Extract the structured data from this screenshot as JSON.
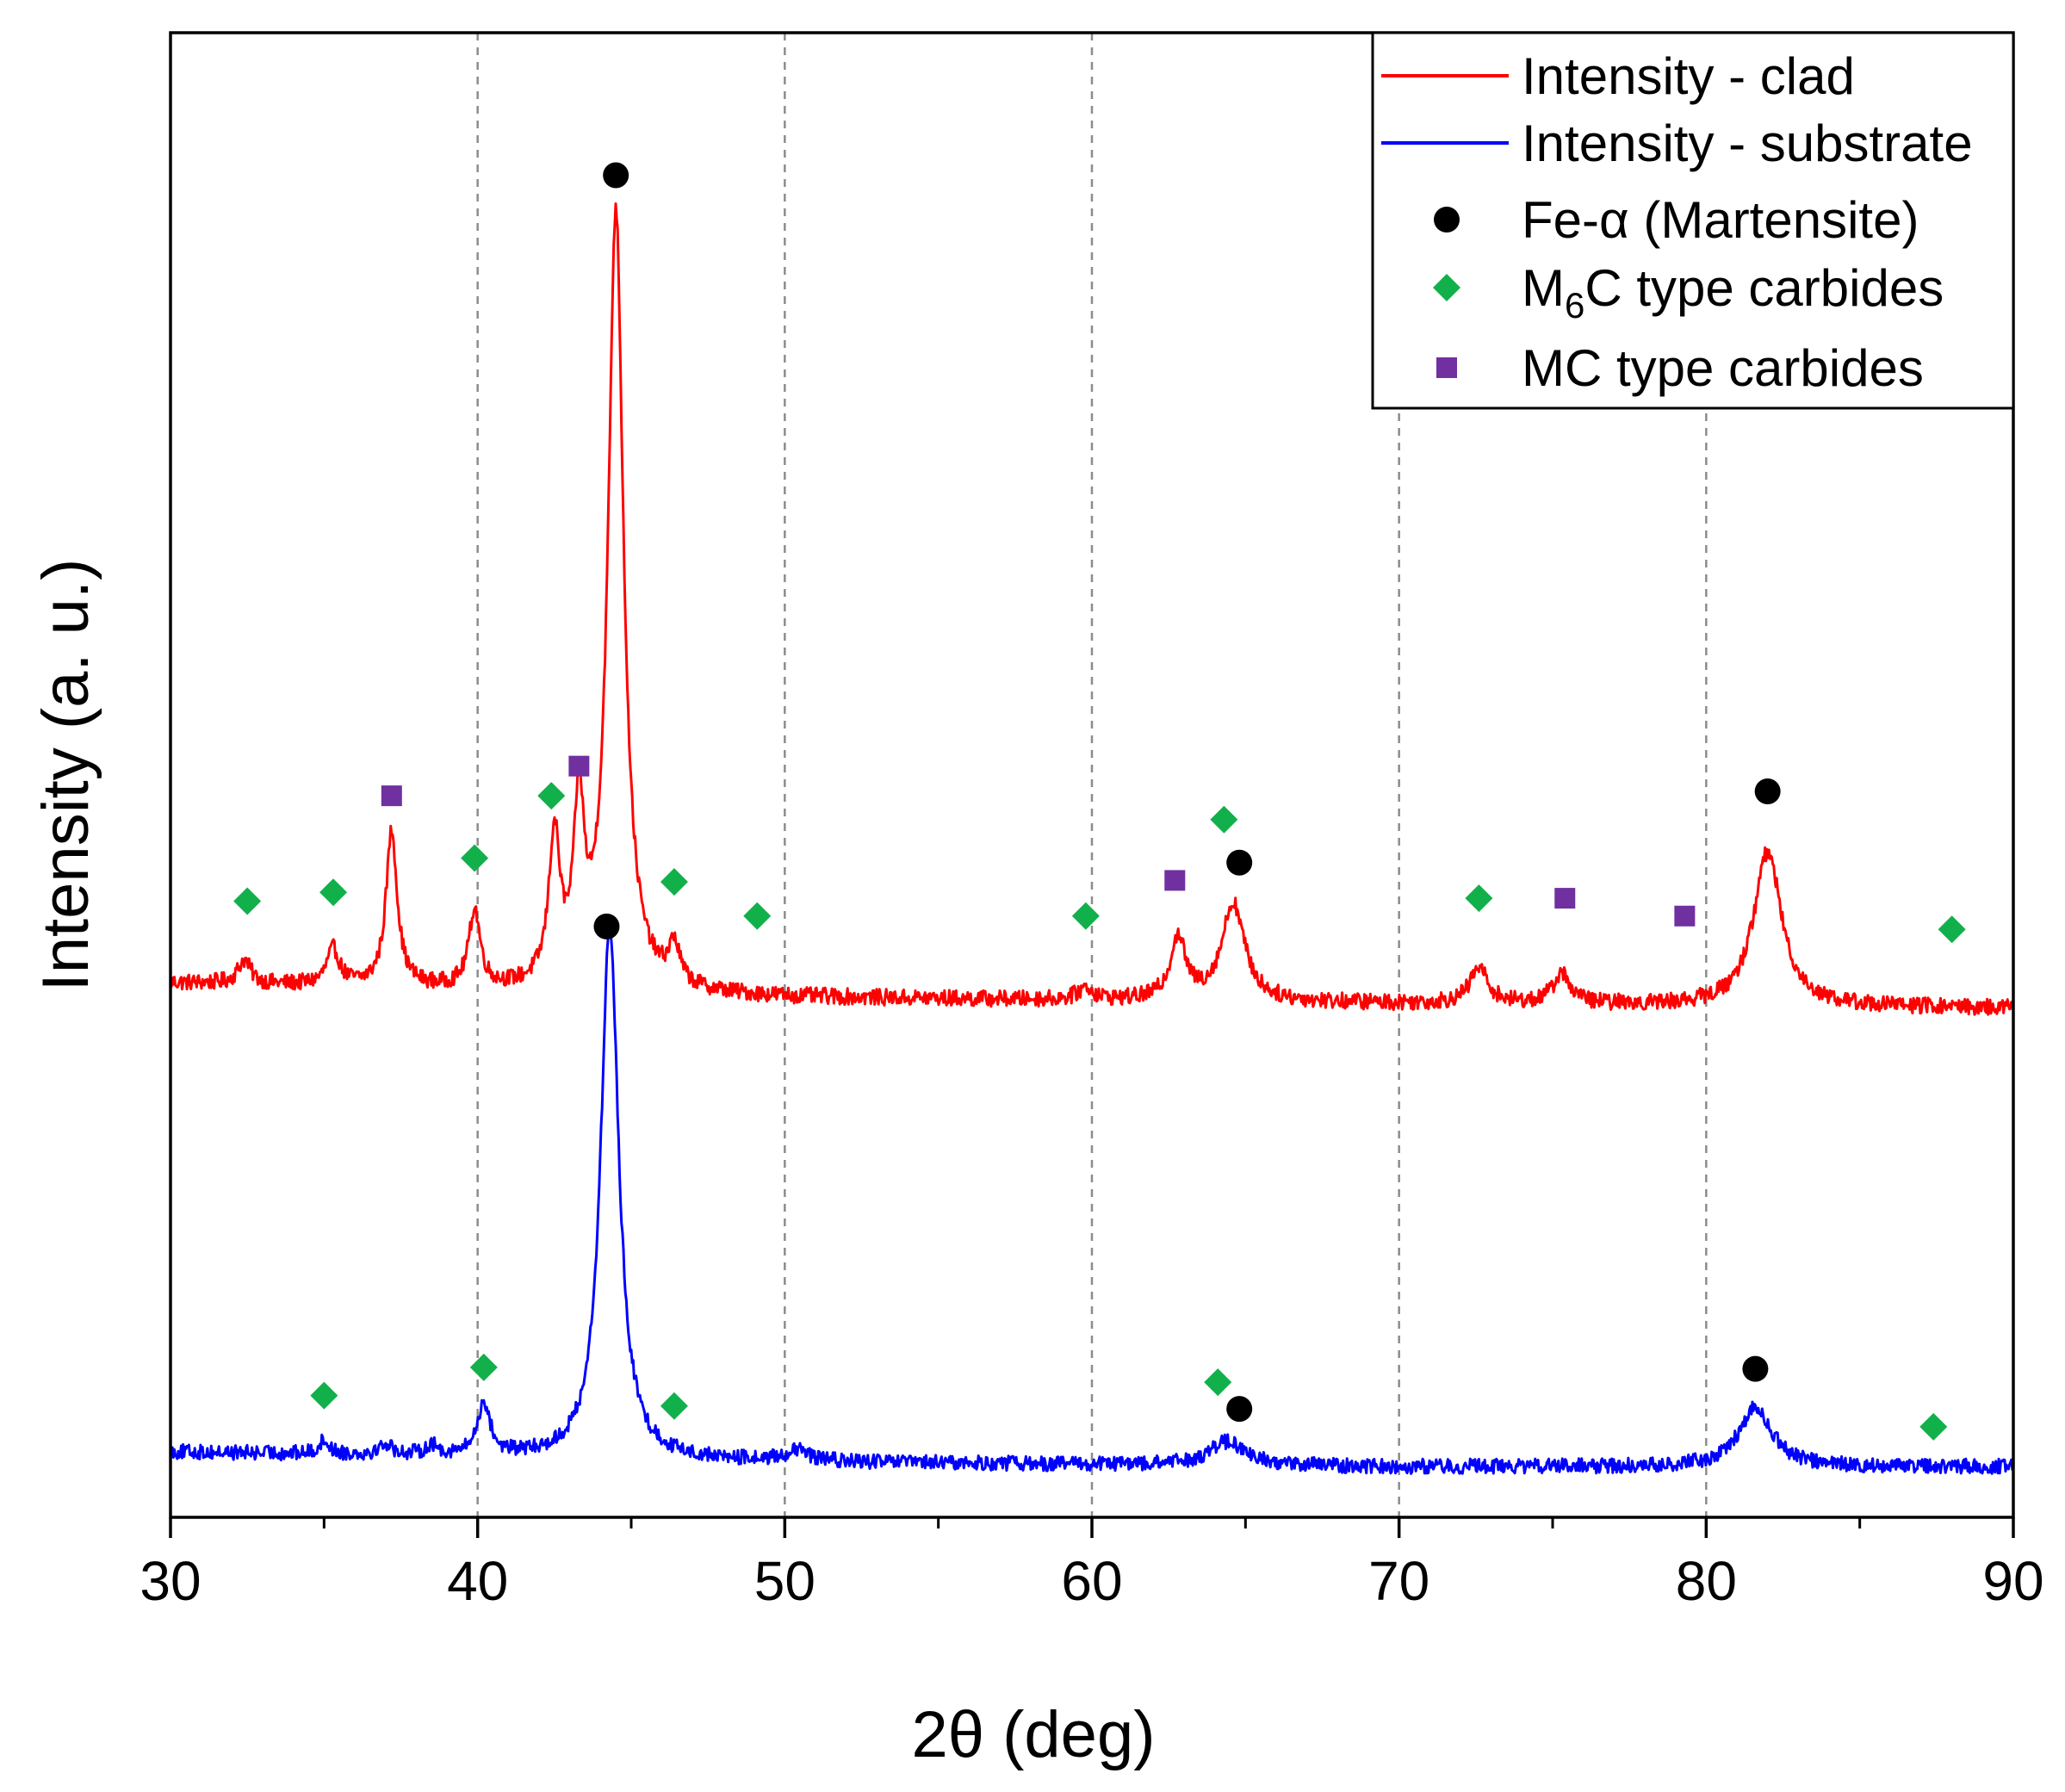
{
  "chart_data": {
    "type": "line",
    "title": "",
    "xlabel": "2θ (deg)",
    "ylabel": "Intensity (a. u.)",
    "xlim": [
      30,
      90
    ],
    "ylim": [
      0,
      100
    ],
    "x_ticks": [
      30,
      40,
      50,
      60,
      70,
      80,
      90
    ],
    "x_tick_labels": [
      "30",
      "40",
      "50",
      "60",
      "70",
      "80",
      "90"
    ],
    "x_minor_tick_step": 5,
    "grid": "vertical dashed at major x ticks",
    "y_tick_labels_visible": false,
    "legend_position": "top-right",
    "legend": [
      {
        "kind": "line",
        "label": "Intensity - clad",
        "color": "#ff0000"
      },
      {
        "kind": "line",
        "label": "Intensity - substrate",
        "color": "#0000ff"
      },
      {
        "kind": "circle",
        "label": "Fe-α (Martensite)",
        "color": "#000000"
      },
      {
        "kind": "diamond",
        "label_prefix": "M",
        "label_subscript": "6",
        "label_suffix": "C type carbides",
        "color": "#12b04b"
      },
      {
        "kind": "square",
        "label": "MC type carbides",
        "color": "#7030a0"
      }
    ],
    "series": [
      {
        "name": "Intensity - clad",
        "color": "#ff0000",
        "baseline": [
          [
            30,
            36.0
          ],
          [
            50,
            35.0
          ],
          [
            70,
            34.6
          ],
          [
            90,
            34.3
          ]
        ],
        "peaks": [
          {
            "pos": 32.4,
            "height": 1.6,
            "width": 0.25
          },
          {
            "pos": 35.3,
            "height": 2.4,
            "width": 0.25
          },
          {
            "pos": 37.2,
            "height": 10.5,
            "width": 0.22
          },
          {
            "pos": 39.9,
            "height": 5.2,
            "width": 0.22
          },
          {
            "pos": 42.5,
            "height": 9.8,
            "width": 0.22
          },
          {
            "pos": 43.3,
            "height": 11.5,
            "width": 0.2
          },
          {
            "pos": 44.5,
            "height": 52.5,
            "width": 0.3
          },
          {
            "pos": 46.4,
            "height": 2.6,
            "width": 0.22
          },
          {
            "pos": 59.8,
            "height": 0.8,
            "width": 0.3
          },
          {
            "pos": 62.8,
            "height": 4.2,
            "width": 0.3
          },
          {
            "pos": 64.6,
            "height": 6.6,
            "width": 0.45
          },
          {
            "pos": 72.6,
            "height": 2.4,
            "width": 0.35
          },
          {
            "pos": 75.3,
            "height": 2.0,
            "width": 0.35
          },
          {
            "pos": 82.0,
            "height": 10.4,
            "width": 0.55
          }
        ],
        "noise_amplitude": 0.55
      },
      {
        "name": "Intensity - substrate",
        "color": "#0000ff",
        "baseline": [
          [
            30,
            4.4
          ],
          [
            50,
            3.7
          ],
          [
            70,
            3.4
          ],
          [
            90,
            3.4
          ]
        ],
        "peaks": [
          {
            "pos": 35.0,
            "height": 0.9,
            "width": 0.2
          },
          {
            "pos": 37.0,
            "height": 0.7,
            "width": 0.25
          },
          {
            "pos": 38.5,
            "height": 0.6,
            "width": 0.25
          },
          {
            "pos": 40.2,
            "height": 3.5,
            "width": 0.25
          },
          {
            "pos": 44.3,
            "height": 36.0,
            "width": 0.35
          },
          {
            "pos": 50.4,
            "height": 0.7,
            "width": 0.5
          },
          {
            "pos": 64.4,
            "height": 1.6,
            "width": 0.7
          },
          {
            "pos": 81.6,
            "height": 4.0,
            "width": 0.65
          }
        ],
        "noise_amplitude": 0.5
      }
    ],
    "markers": [
      {
        "phase": "Fe-α (Martensite)",
        "shape": "circle",
        "x": 44.5,
        "y": 90.4
      },
      {
        "phase": "Fe-α (Martensite)",
        "shape": "circle",
        "x": 64.8,
        "y": 44.1
      },
      {
        "phase": "Fe-α (Martensite)",
        "shape": "circle",
        "x": 82.0,
        "y": 48.9
      },
      {
        "phase": "Fe-α (Martensite)",
        "shape": "circle",
        "x": 44.2,
        "y": 39.8
      },
      {
        "phase": "Fe-α (Martensite)",
        "shape": "circle",
        "x": 64.8,
        "y": 7.3
      },
      {
        "phase": "Fe-α (Martensite)",
        "shape": "circle",
        "x": 81.6,
        "y": 10.0
      },
      {
        "phase": "M6C type carbides",
        "shape": "diamond",
        "x": 32.5,
        "y": 41.5
      },
      {
        "phase": "M6C type carbides",
        "shape": "diamond",
        "x": 35.3,
        "y": 42.1
      },
      {
        "phase": "M6C type carbides",
        "shape": "diamond",
        "x": 39.9,
        "y": 44.4
      },
      {
        "phase": "M6C type carbides",
        "shape": "diamond",
        "x": 42.4,
        "y": 48.6
      },
      {
        "phase": "M6C type carbides",
        "shape": "diamond",
        "x": 46.4,
        "y": 42.8
      },
      {
        "phase": "M6C type carbides",
        "shape": "diamond",
        "x": 49.1,
        "y": 40.5
      },
      {
        "phase": "M6C type carbides",
        "shape": "diamond",
        "x": 59.8,
        "y": 40.5
      },
      {
        "phase": "M6C type carbides",
        "shape": "diamond",
        "x": 64.3,
        "y": 47.0
      },
      {
        "phase": "M6C type carbides",
        "shape": "diamond",
        "x": 72.6,
        "y": 41.7
      },
      {
        "phase": "M6C type carbides",
        "shape": "diamond",
        "x": 88.0,
        "y": 39.6
      },
      {
        "phase": "M6C type carbides",
        "shape": "diamond",
        "x": 35.0,
        "y": 8.2
      },
      {
        "phase": "M6C type carbides",
        "shape": "diamond",
        "x": 40.2,
        "y": 10.1
      },
      {
        "phase": "M6C type carbides",
        "shape": "diamond",
        "x": 46.4,
        "y": 7.5
      },
      {
        "phase": "M6C type carbides",
        "shape": "diamond",
        "x": 64.1,
        "y": 9.1
      },
      {
        "phase": "M6C type carbides",
        "shape": "diamond",
        "x": 87.4,
        "y": 6.1
      },
      {
        "phase": "MC type carbides",
        "shape": "square",
        "x": 37.2,
        "y": 48.6
      },
      {
        "phase": "MC type carbides",
        "shape": "square",
        "x": 43.3,
        "y": 50.6
      },
      {
        "phase": "MC type carbides",
        "shape": "square",
        "x": 62.7,
        "y": 42.9
      },
      {
        "phase": "MC type carbides",
        "shape": "square",
        "x": 75.4,
        "y": 41.7
      },
      {
        "phase": "MC type carbides",
        "shape": "square",
        "x": 79.3,
        "y": 40.5
      }
    ]
  }
}
